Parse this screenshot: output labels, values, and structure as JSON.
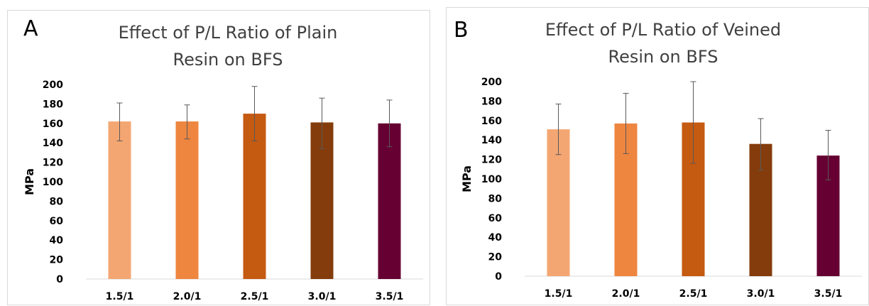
{
  "chart_data": [
    {
      "type": "bar",
      "panel_label": "A",
      "title_lines": [
        "Effect of P/L Ratio of Plain",
        "Resin on BFS"
      ],
      "xlabel": "",
      "ylabel": "MPa",
      "categories": [
        "1.5/1",
        "2.0/1",
        "2.5/1",
        "3.0/1",
        "3.5/1"
      ],
      "values": [
        162,
        162,
        170,
        161,
        160
      ],
      "error_low": [
        142,
        144,
        142,
        134,
        136
      ],
      "error_high": [
        181,
        179,
        198,
        186,
        184
      ],
      "ylim": [
        0,
        200
      ],
      "yticks": [
        0,
        20,
        40,
        60,
        80,
        100,
        120,
        140,
        160,
        180,
        200
      ],
      "grid": false,
      "legend": "none",
      "colors": [
        "#f4a672",
        "#ee8640",
        "#c55a11",
        "#843c0c",
        "#660033"
      ]
    },
    {
      "type": "bar",
      "panel_label": "B",
      "title_lines": [
        "Effect of P/L Ratio of Veined",
        "Resin on BFS"
      ],
      "xlabel": "",
      "ylabel": "MPa",
      "categories": [
        "1.5/1",
        "2.0/1",
        "2.5/1",
        "3.0/1",
        "3.5/1"
      ],
      "values": [
        151,
        157,
        158,
        136,
        124
      ],
      "error_low": [
        125,
        126,
        116,
        109,
        99
      ],
      "error_high": [
        177,
        188,
        200,
        162,
        150
      ],
      "ylim": [
        0,
        200
      ],
      "yticks": [
        0,
        20,
        40,
        60,
        80,
        100,
        120,
        140,
        160,
        180,
        200
      ],
      "grid": false,
      "legend": "none",
      "colors": [
        "#f4a672",
        "#ee8640",
        "#c55a11",
        "#843c0c",
        "#660033"
      ]
    }
  ]
}
